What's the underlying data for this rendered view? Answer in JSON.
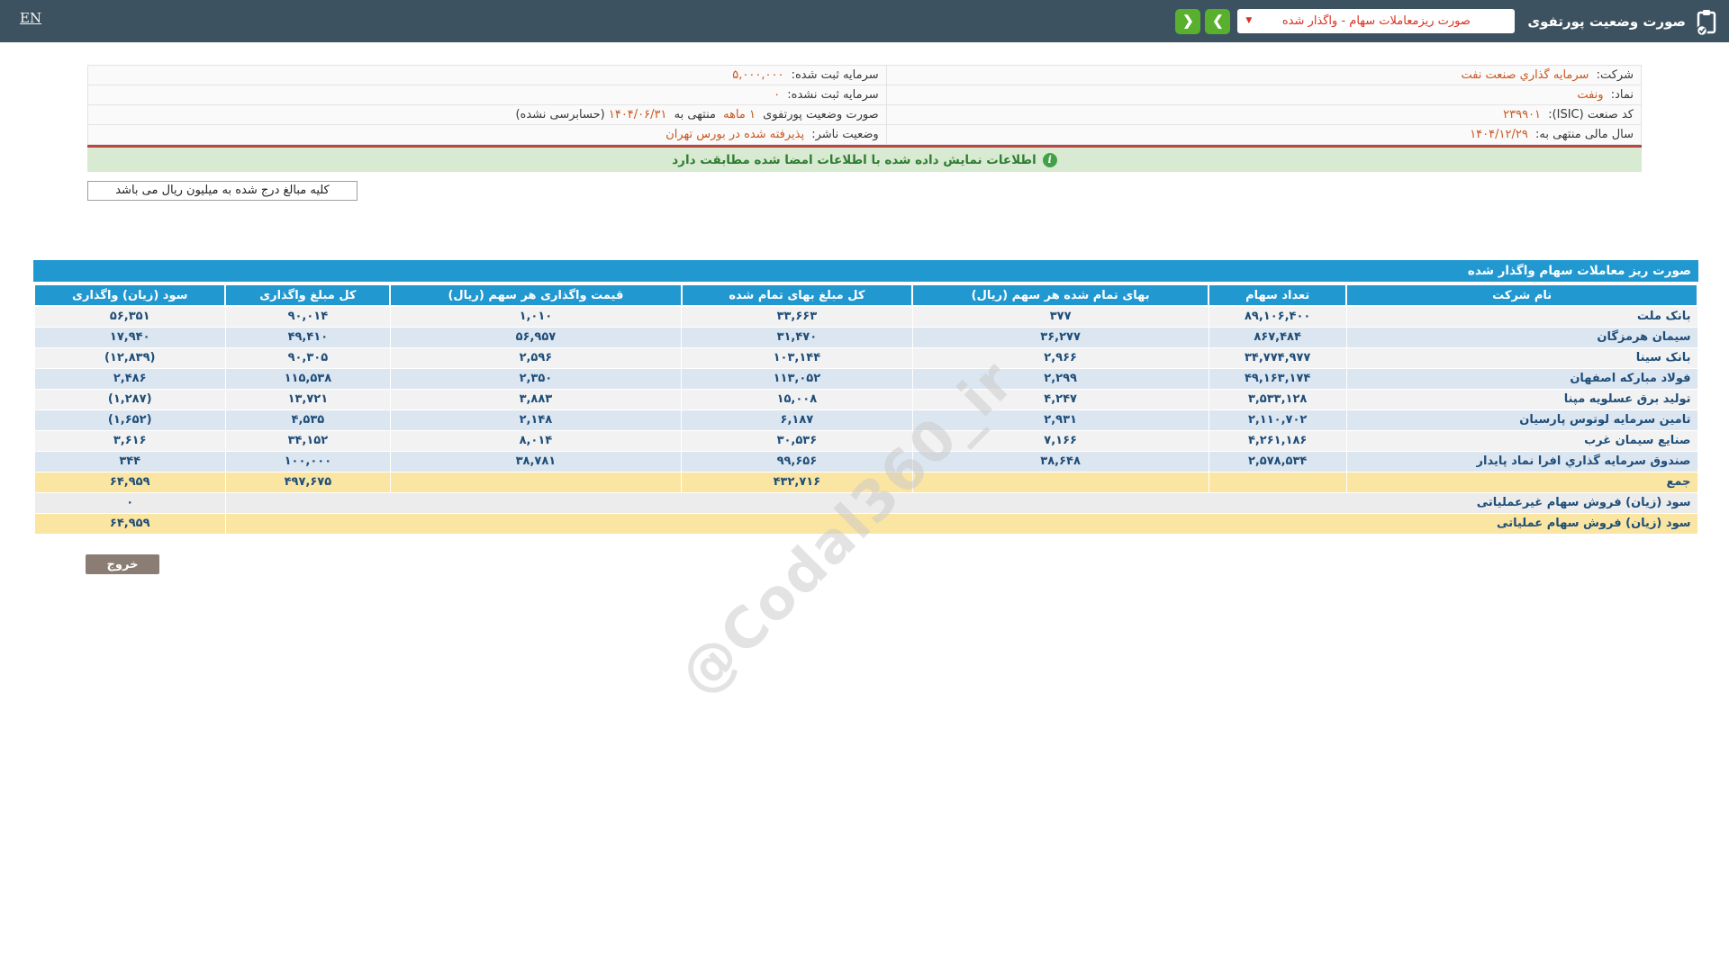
{
  "colors": {
    "topbar_bg": "#3d5260",
    "accent_orange": "#c9571e",
    "table_blue": "#2298d0",
    "row_alt_blue": "#dce6f1",
    "row_base": "#f2f2f2",
    "sum_yellow": "#fbe5a2",
    "negative_red": "#e60000",
    "notice_green_bg": "#d9ead3",
    "notice_green_text": "#2e7d32",
    "nav_button_green": "#58b02d",
    "dropdown_red": "#d93025",
    "divider_red": "#bf4340",
    "exit_button_bg": "#8b7d74",
    "cell_text_navy": "#1f4e79"
  },
  "header": {
    "language": "EN",
    "title": "صورت وضعیت پورتفوی",
    "dropdown_value": "صورت ریزمعاملات سهام - واگذار شده",
    "caret_icon": "▼",
    "next_icon": "❯",
    "prev_icon": "❮"
  },
  "info": {
    "rows": [
      {
        "right_label": "شرکت:",
        "right_value": "سرمایه گذاري صنعت نفت",
        "left_label": "سرمایه ثبت شده:",
        "left_value": "۵,۰۰۰,۰۰۰"
      },
      {
        "right_label": "نماد:",
        "right_value": "ونفت",
        "left_label": "سرمایه ثبت نشده:",
        "left_value": "۰"
      },
      {
        "right_label": "کد صنعت (ISIC):",
        "right_value": "۲۳۹۹۰۱",
        "left_label": "صورت وضعیت پورتفوی",
        "left_parts": {
          "p1": "۱ ماهه",
          "mid": "منتهی به",
          "p2": "۱۴۰۴/۰۶/۳۱",
          "suffix": "(حسابرسی نشده)"
        }
      },
      {
        "right_label": "سال مالی منتهی به:",
        "right_value": "۱۴۰۴/۱۲/۲۹",
        "left_label": "وضعیت ناشر:",
        "left_value": "پذیرفته شده در بورس تهران"
      }
    ]
  },
  "notice": {
    "text": "اطلاعات نمایش داده شده با اطلاعات امضا شده مطابقت دارد",
    "icon": "i"
  },
  "units_note": "کلیه مبالغ درج شده به میلیون ریال می باشد",
  "table": {
    "title": "صورت ریز معاملات سهام واگذار شده",
    "columns": [
      "نام شرکت",
      "تعداد سهام",
      "بهای تمام شده هر سهم (ریال)",
      "کل مبلغ بهای تمام شده",
      "قیمت واگذاری هر سهم (ریال)",
      "کل مبلغ واگذاری",
      "سود (زیان) واگذاری"
    ],
    "rows": [
      {
        "type": "data",
        "cells": [
          "بانک ملت",
          "۸۹,۱۰۶,۴۰۰",
          "۳۷۷",
          "۳۳,۶۶۳",
          "۱,۰۱۰",
          "۹۰,۰۱۴",
          "۵۶,۳۵۱"
        ]
      },
      {
        "type": "data",
        "cells": [
          "سیمان هرمزگان",
          "۸۶۷,۴۸۴",
          "۳۶,۲۷۷",
          "۳۱,۴۷۰",
          "۵۶,۹۵۷",
          "۴۹,۴۱۰",
          "۱۷,۹۴۰"
        ]
      },
      {
        "type": "data",
        "cells": [
          "بانک سینا",
          "۳۴,۷۷۴,۹۷۷",
          "۲,۹۶۶",
          "۱۰۳,۱۴۴",
          "۲,۵۹۶",
          "۹۰,۳۰۵",
          "(۱۲,۸۳۹)"
        ]
      },
      {
        "type": "data",
        "cells": [
          "فولاد مبارکه اصفهان",
          "۴۹,۱۶۳,۱۷۴",
          "۲,۲۹۹",
          "۱۱۳,۰۵۲",
          "۲,۳۵۰",
          "۱۱۵,۵۳۸",
          "۲,۴۸۶"
        ]
      },
      {
        "type": "data",
        "cells": [
          "تولید برق عسلویه مپنا",
          "۳,۵۳۳,۱۲۸",
          "۴,۲۴۷",
          "۱۵,۰۰۸",
          "۳,۸۸۳",
          "۱۳,۷۲۱",
          "(۱,۲۸۷)"
        ]
      },
      {
        "type": "data",
        "cells": [
          "تامین سرمایه لوتوس پارسیان",
          "۲,۱۱۰,۷۰۲",
          "۲,۹۳۱",
          "۶,۱۸۷",
          "۲,۱۴۸",
          "۴,۵۳۵",
          "(۱,۶۵۲)"
        ]
      },
      {
        "type": "data",
        "cells": [
          "صنایع سیمان غرب",
          "۴,۲۶۱,۱۸۶",
          "۷,۱۶۶",
          "۳۰,۵۳۶",
          "۸,۰۱۴",
          "۳۴,۱۵۲",
          "۳,۶۱۶"
        ]
      },
      {
        "type": "data",
        "cells": [
          "صندوق سرمایه گذاري افرا نماد پایدار",
          "۲,۵۷۸,۵۳۴",
          "۳۸,۶۴۸",
          "۹۹,۶۵۶",
          "۳۸,۷۸۱",
          "۱۰۰,۰۰۰",
          "۳۴۴"
        ]
      },
      {
        "type": "sum",
        "cells": [
          "جمع",
          "",
          "",
          "۴۳۲,۷۱۶",
          "",
          "۴۹۷,۶۷۵",
          "۶۴,۹۵۹"
        ]
      },
      {
        "type": "span",
        "variant": "gray",
        "label": "سود (زیان) فروش سهام غیرعملیاتی",
        "value": "۰"
      },
      {
        "type": "span",
        "variant": "yellow",
        "label": "سود (زیان) فروش سهام عملیاتی",
        "value": "۶۴,۹۵۹"
      }
    ]
  },
  "exit_button": "خروج",
  "watermark": "@Codal360_ir"
}
